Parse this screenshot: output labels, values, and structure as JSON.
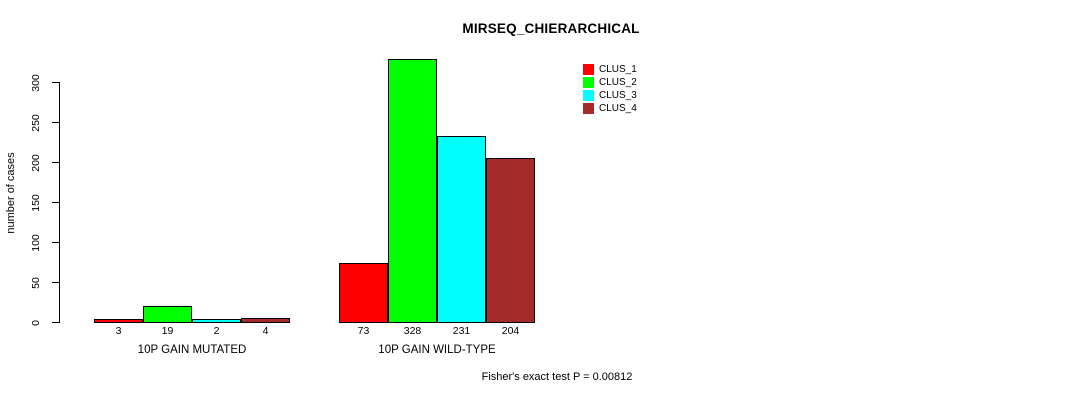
{
  "chart_data": {
    "type": "bar",
    "title": "MIRSEQ_CHIERARCHICAL",
    "ylabel": "number of cases",
    "xlabel": "",
    "categories": [
      "10P GAIN MUTATED",
      "10P GAIN WILD-TYPE"
    ],
    "series": [
      {
        "name": "CLUS_1",
        "color": "#ff0000",
        "values": [
          3,
          73
        ]
      },
      {
        "name": "CLUS_2",
        "color": "#00ff00",
        "values": [
          19,
          328
        ]
      },
      {
        "name": "CLUS_3",
        "color": "#00ffff",
        "values": [
          2,
          231
        ]
      },
      {
        "name": "CLUS_4",
        "color": "#a52a2a",
        "values": [
          4,
          204
        ]
      }
    ],
    "yticks": [
      0,
      50,
      100,
      150,
      200,
      250,
      300
    ],
    "ylim": [
      0,
      340
    ],
    "grid": false,
    "bar_value_labels_shown": true,
    "legend_position": "top-right",
    "annotation": "Fisher's exact test P = 0.00812",
    "axis_color": "#000000",
    "text_color": "#000000",
    "background_color": "#ffffff"
  }
}
